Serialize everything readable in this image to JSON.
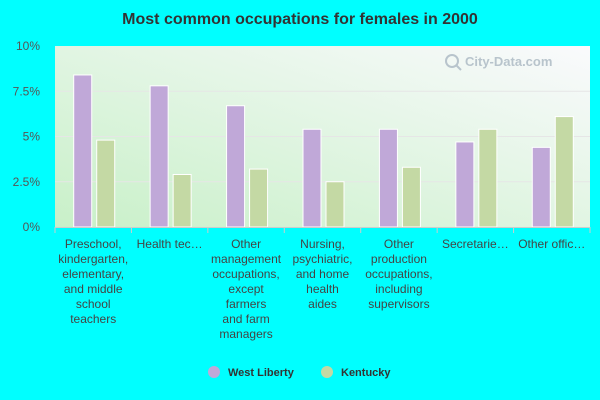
{
  "chart_data": {
    "type": "bar",
    "title": "Most common occupations for females in 2000",
    "categories": [
      "Preschool, kindergarten, elementary, and middle school teachers",
      "Health tec…",
      "Other management occupations, except farmers and farm managers",
      "Nursing, psychiatric, and home health aides",
      "Other production occupations, including supervisors",
      "Secretarie…",
      "Other offic…"
    ],
    "category_lines": [
      [
        "Preschool,",
        "kindergarten,",
        "elementary,",
        "and middle",
        "school",
        "teachers"
      ],
      [
        "Health tec…"
      ],
      [
        "Other",
        "management",
        "occupations,",
        "except",
        "farmers",
        "and farm",
        "managers"
      ],
      [
        "Nursing,",
        "psychiatric,",
        "and home",
        "health",
        "aides"
      ],
      [
        "Other",
        "production",
        "occupations,",
        "including",
        "supervisors"
      ],
      [
        "Secretarie…"
      ],
      [
        "Other offic…"
      ]
    ],
    "series": [
      {
        "name": "West Liberty",
        "color": "#c0a8d8",
        "values": [
          8.4,
          7.8,
          6.7,
          5.4,
          5.4,
          4.7,
          4.4
        ]
      },
      {
        "name": "Kentucky",
        "color": "#c4d9a4",
        "values": [
          4.8,
          2.9,
          3.2,
          2.5,
          3.3,
          5.4,
          6.1
        ]
      }
    ],
    "yticks": [
      0,
      2.5,
      5,
      7.5,
      10
    ],
    "ytick_labels": [
      "0%",
      "2.5%",
      "5%",
      "7.5%",
      "10%"
    ],
    "ylim": [
      0,
      10
    ],
    "xlabel": "",
    "ylabel": "",
    "legend_position": "bottom-center",
    "grid": true
  },
  "watermark": {
    "text": "City-Data.com"
  },
  "colors": {
    "page_background": "#00ffff",
    "plot_gradient_top": "#f7f7fb",
    "plot_gradient_bottom": "#c8f0c8"
  }
}
